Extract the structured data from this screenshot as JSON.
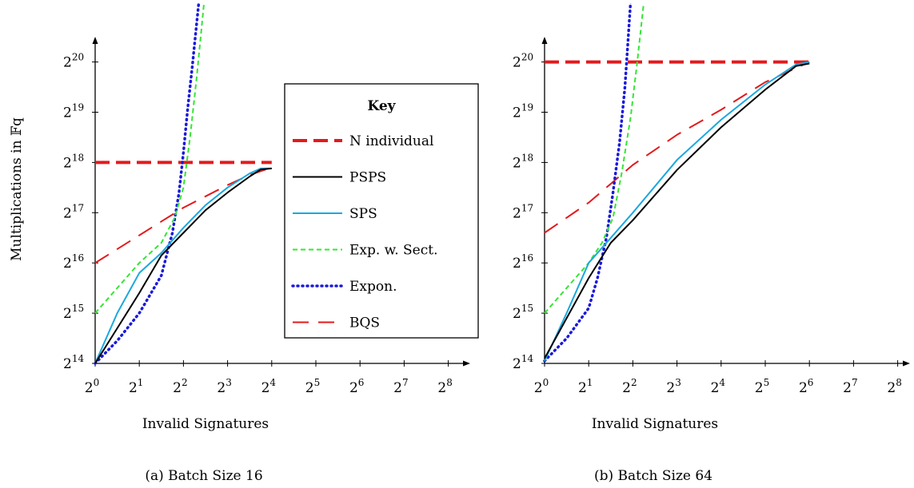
{
  "chart_data": [
    {
      "type": "line",
      "caption": "(a) Batch Size 16",
      "xlabel": "Invalid Signatures",
      "ylabel": "Multiplications in 𝔽q",
      "x_scale": "log2",
      "y_scale": "log2",
      "x_ticks": [
        {
          "base": "2",
          "exp": "0"
        },
        {
          "base": "2",
          "exp": "1"
        },
        {
          "base": "2",
          "exp": "2"
        },
        {
          "base": "2",
          "exp": "3"
        },
        {
          "base": "2",
          "exp": "4"
        },
        {
          "base": "2",
          "exp": "5"
        },
        {
          "base": "2",
          "exp": "6"
        },
        {
          "base": "2",
          "exp": "7"
        },
        {
          "base": "2",
          "exp": "8"
        }
      ],
      "y_ticks": [
        {
          "base": "2",
          "exp": "14"
        },
        {
          "base": "2",
          "exp": "15"
        },
        {
          "base": "2",
          "exp": "16"
        },
        {
          "base": "2",
          "exp": "17"
        },
        {
          "base": "2",
          "exp": "18"
        },
        {
          "base": "2",
          "exp": "19"
        },
        {
          "base": "2",
          "exp": "20"
        }
      ],
      "xlim": [
        0,
        8.9
      ],
      "ylim": [
        14,
        21.1
      ],
      "series": [
        {
          "name": "N individual",
          "points": [
            [
              0,
              18
            ],
            [
              4,
              18
            ]
          ]
        },
        {
          "name": "BQS",
          "points": [
            [
              0,
              16
            ],
            [
              1,
              16.55
            ],
            [
              2,
              17.1
            ],
            [
              3,
              17.55
            ],
            [
              3.5,
              17.75
            ],
            [
              4,
              17.9
            ]
          ]
        },
        {
          "name": "Expon.",
          "points": [
            [
              0,
              14
            ],
            [
              0.5,
              14.45
            ],
            [
              1,
              15
            ],
            [
              1.5,
              15.75
            ],
            [
              1.75,
              16.6
            ],
            [
              1.9,
              17.4
            ],
            [
              2,
              18.2
            ],
            [
              2.1,
              19.1
            ],
            [
              2.2,
              19.9
            ],
            [
              2.35,
              21.2
            ]
          ]
        },
        {
          "name": "Exp. w. Sect.",
          "points": [
            [
              0,
              15
            ],
            [
              0.5,
              15.5
            ],
            [
              1,
              16
            ],
            [
              1.5,
              16.4
            ],
            [
              1.8,
              16.9
            ],
            [
              2,
              17.5
            ],
            [
              2.15,
              18.5
            ],
            [
              2.3,
              19.7
            ],
            [
              2.47,
              21.2
            ]
          ]
        },
        {
          "name": "SPS",
          "points": [
            [
              0,
              14
            ],
            [
              0.5,
              15
            ],
            [
              1,
              15.8
            ],
            [
              1.5,
              16.2
            ],
            [
              2,
              16.7
            ],
            [
              2.5,
              17.15
            ],
            [
              3,
              17.5
            ],
            [
              3.5,
              17.78
            ],
            [
              3.75,
              17.88
            ],
            [
              4,
              17.88
            ]
          ]
        },
        {
          "name": "PSPS",
          "points": [
            [
              0,
              14
            ],
            [
              0.5,
              14.7
            ],
            [
              1,
              15.4
            ],
            [
              1.5,
              16.15
            ],
            [
              2,
              16.6
            ],
            [
              2.5,
              17.05
            ],
            [
              3,
              17.4
            ],
            [
              3.5,
              17.72
            ],
            [
              3.75,
              17.86
            ],
            [
              4,
              17.88
            ]
          ]
        }
      ]
    },
    {
      "type": "line",
      "caption": "(b) Batch Size 64",
      "xlabel": "Invalid Signatures",
      "x_scale": "log2",
      "y_scale": "log2",
      "x_ticks": [
        {
          "base": "2",
          "exp": "0"
        },
        {
          "base": "2",
          "exp": "1"
        },
        {
          "base": "2",
          "exp": "2"
        },
        {
          "base": "2",
          "exp": "3"
        },
        {
          "base": "2",
          "exp": "4"
        },
        {
          "base": "2",
          "exp": "5"
        },
        {
          "base": "2",
          "exp": "6"
        },
        {
          "base": "2",
          "exp": "7"
        },
        {
          "base": "2",
          "exp": "8"
        }
      ],
      "y_ticks": [
        {
          "base": "2",
          "exp": "14"
        },
        {
          "base": "2",
          "exp": "15"
        },
        {
          "base": "2",
          "exp": "16"
        },
        {
          "base": "2",
          "exp": "17"
        },
        {
          "base": "2",
          "exp": "18"
        },
        {
          "base": "2",
          "exp": "19"
        },
        {
          "base": "2",
          "exp": "20"
        }
      ],
      "xlim": [
        0,
        8.9
      ],
      "ylim": [
        14,
        21.1
      ],
      "series": [
        {
          "name": "N individual",
          "points": [
            [
              0,
              20
            ],
            [
              6,
              20
            ]
          ]
        },
        {
          "name": "BQS",
          "points": [
            [
              0,
              16.6
            ],
            [
              1,
              17.2
            ],
            [
              2,
              17.95
            ],
            [
              3,
              18.55
            ],
            [
              4,
              19.05
            ],
            [
              5,
              19.6
            ],
            [
              6,
              20
            ]
          ]
        },
        {
          "name": "Expon.",
          "points": [
            [
              0,
              14.05
            ],
            [
              0.5,
              14.5
            ],
            [
              1,
              15.1
            ],
            [
              1.2,
              15.7
            ],
            [
              1.4,
              16.5
            ],
            [
              1.55,
              17.4
            ],
            [
              1.7,
              18.4
            ],
            [
              1.82,
              19.5
            ],
            [
              1.95,
              21.2
            ]
          ]
        },
        {
          "name": "Exp. w. Sect.",
          "points": [
            [
              0,
              15
            ],
            [
              0.5,
              15.5
            ],
            [
              1,
              16
            ],
            [
              1.3,
              16.4
            ],
            [
              1.55,
              16.9
            ],
            [
              1.75,
              17.8
            ],
            [
              1.95,
              18.9
            ],
            [
              2.1,
              20
            ],
            [
              2.25,
              21.2
            ]
          ]
        },
        {
          "name": "SPS",
          "points": [
            [
              0,
              14.05
            ],
            [
              0.5,
              15
            ],
            [
              1,
              16
            ],
            [
              1.5,
              16.5
            ],
            [
              2,
              17
            ],
            [
              3,
              18.05
            ],
            [
              4,
              18.85
            ],
            [
              5,
              19.55
            ],
            [
              5.7,
              19.95
            ],
            [
              6,
              20
            ]
          ]
        },
        {
          "name": "PSPS",
          "points": [
            [
              0,
              14.1
            ],
            [
              0.5,
              14.9
            ],
            [
              1,
              15.7
            ],
            [
              1.5,
              16.4
            ],
            [
              2,
              16.85
            ],
            [
              3,
              17.85
            ],
            [
              4,
              18.7
            ],
            [
              5,
              19.45
            ],
            [
              5.7,
              19.92
            ],
            [
              6,
              19.97
            ]
          ]
        }
      ]
    }
  ],
  "legend": {
    "title": "Key",
    "placement": "inside-left-panel",
    "entries": [
      "N individual",
      "PSPS",
      "SPS",
      "Exp. w. Sect.",
      "Expon.",
      "BQS"
    ]
  },
  "series_styles": {
    "N individual": {
      "color": "#e31a1c",
      "dash": "18 8",
      "width": 4
    },
    "PSPS": {
      "color": "#000000",
      "dash": "",
      "width": 2
    },
    "SPS": {
      "color": "#1ba8e0",
      "dash": "",
      "width": 2
    },
    "Exp. w. Sect.": {
      "color": "#33e633",
      "dash": "6 4",
      "width": 2
    },
    "Expon.": {
      "color": "#1a1adb",
      "dash": "1 5",
      "width": 3.5
    },
    "BQS": {
      "color": "#e31a1c",
      "dash": "20 12",
      "width": 2
    }
  }
}
